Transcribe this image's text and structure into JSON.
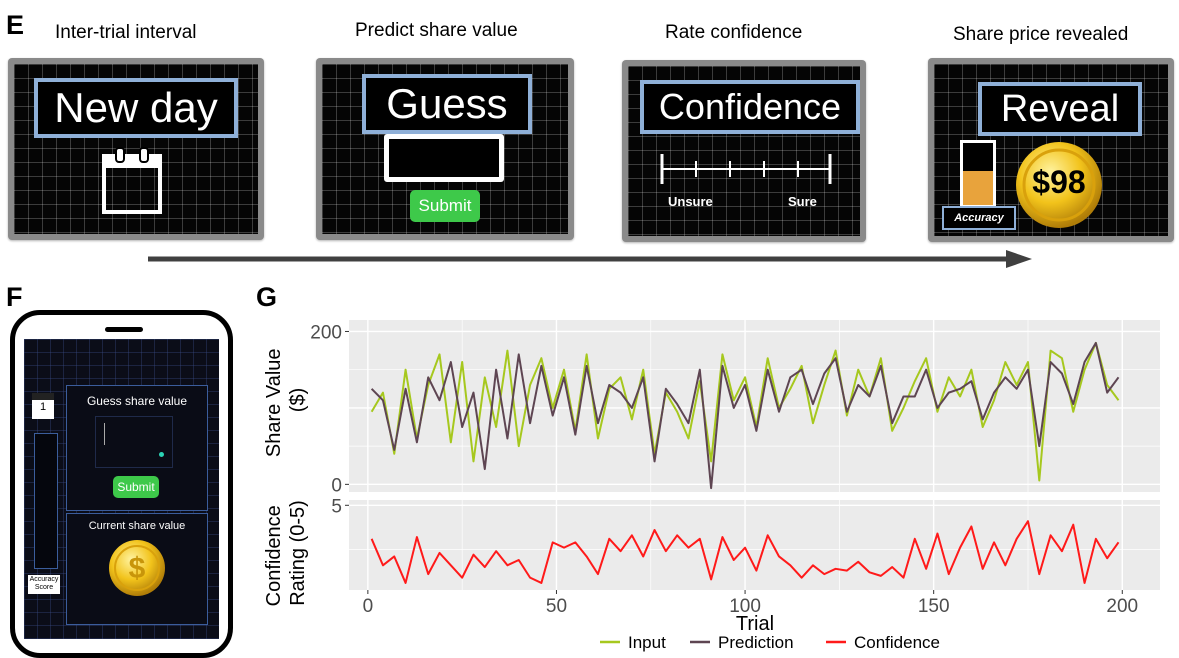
{
  "panel_e": {
    "letter": "E",
    "steps": [
      {
        "title": "Inter-trial interval",
        "label": "New day"
      },
      {
        "title": "Predict share value",
        "label": "Guess",
        "button": "Submit"
      },
      {
        "title": "Rate confidence",
        "label": "Confidence",
        "scale_left": "Unsure",
        "scale_right": "Sure"
      },
      {
        "title": "Share price revealed",
        "label": "Reveal",
        "price": "$98",
        "accuracy_label": "Accuracy",
        "accuracy_level": 0.55
      }
    ]
  },
  "panel_f": {
    "letter": "F",
    "day_number": "1",
    "accuracy_label_line1": "Accuracy",
    "accuracy_label_line2": "Score",
    "guess_title": "Guess share value",
    "submit_label": "Submit",
    "current_title": "Current share value"
  },
  "panel_g": {
    "letter": "G"
  },
  "colors": {
    "input": "#a6c81e",
    "prediction": "#5e4552",
    "confidence": "#ff1a1a",
    "plot_bg": "#ebebeb",
    "screen_border": "#8fb0d8",
    "submit_green": "#3ec94a",
    "accuracy_fill": "#e8a33c",
    "coin_gold": "#f2c31b"
  },
  "chart_data": [
    {
      "type": "line",
      "ylabel": "Share Value ($)",
      "ylim": [
        0,
        200
      ],
      "yticks": [
        0,
        200
      ],
      "xlim": [
        0,
        200
      ],
      "grid": true,
      "series": [
        {
          "name": "Input",
          "x": [
            1,
            4,
            7,
            10,
            13,
            16,
            19,
            22,
            25,
            28,
            31,
            34,
            37,
            40,
            43,
            46,
            49,
            52,
            55,
            58,
            61,
            64,
            67,
            70,
            73,
            76,
            79,
            82,
            85,
            88,
            91,
            94,
            97,
            100,
            103,
            106,
            109,
            112,
            115,
            118,
            121,
            124,
            127,
            130,
            133,
            136,
            139,
            142,
            145,
            148,
            151,
            154,
            157,
            160,
            163,
            166,
            169,
            172,
            175,
            178,
            181,
            184,
            187,
            190,
            193,
            196,
            199
          ],
          "y": [
            95,
            120,
            40,
            150,
            60,
            130,
            170,
            55,
            160,
            30,
            140,
            75,
            175,
            50,
            130,
            165,
            100,
            150,
            70,
            170,
            60,
            125,
            140,
            85,
            150,
            40,
            120,
            95,
            60,
            135,
            30,
            170,
            110,
            140,
            75,
            165,
            100,
            125,
            155,
            80,
            130,
            175,
            90,
            150,
            115,
            165,
            70,
            100,
            135,
            165,
            95,
            140,
            115,
            150,
            75,
            110,
            160,
            130,
            160,
            5,
            175,
            165,
            95,
            150,
            185,
            130,
            110
          ]
        },
        {
          "name": "Prediction",
          "x": [
            1,
            4,
            7,
            10,
            13,
            16,
            19,
            22,
            25,
            28,
            31,
            34,
            37,
            40,
            43,
            46,
            49,
            52,
            55,
            58,
            61,
            64,
            67,
            70,
            73,
            76,
            79,
            82,
            85,
            88,
            91,
            94,
            97,
            100,
            103,
            106,
            109,
            112,
            115,
            118,
            121,
            124,
            127,
            130,
            133,
            136,
            139,
            142,
            145,
            148,
            151,
            154,
            157,
            160,
            163,
            166,
            169,
            172,
            175,
            178,
            181,
            184,
            187,
            190,
            193,
            196,
            199
          ],
          "y": [
            125,
            110,
            45,
            125,
            55,
            140,
            110,
            160,
            75,
            120,
            20,
            150,
            60,
            170,
            80,
            155,
            90,
            140,
            65,
            155,
            80,
            130,
            120,
            100,
            140,
            30,
            125,
            105,
            80,
            150,
            -5,
            155,
            100,
            130,
            70,
            150,
            95,
            140,
            150,
            105,
            145,
            165,
            95,
            130,
            115,
            155,
            80,
            115,
            115,
            150,
            100,
            120,
            125,
            135,
            85,
            120,
            140,
            125,
            150,
            50,
            160,
            145,
            105,
            160,
            185,
            120,
            140
          ]
        },
        {
          "name": "Confidence",
          "x": [
            1,
            4,
            7,
            10,
            13,
            16,
            19,
            22,
            25,
            28,
            31,
            34,
            37,
            40,
            43,
            46,
            49,
            52,
            55,
            58,
            61,
            64,
            67,
            70,
            73,
            76,
            79,
            82,
            85,
            88,
            91,
            94,
            97,
            100,
            103,
            106,
            109,
            112,
            115,
            118,
            121,
            124,
            127,
            130,
            133,
            136,
            139,
            142,
            145,
            148,
            151,
            154,
            157,
            160,
            163,
            166,
            169,
            172,
            175,
            178,
            181,
            184,
            187,
            190,
            193,
            196,
            199
          ],
          "y": [
            3.1,
            1.6,
            2.1,
            0.6,
            3.2,
            1.1,
            2.3,
            1.6,
            0.9,
            2.2,
            1.5,
            2.4,
            1.6,
            1.9,
            0.9,
            0.6,
            2.9,
            2.6,
            2.9,
            2.1,
            1.1,
            3.1,
            2.4,
            3.3,
            2.1,
            3.6,
            2.4,
            3.3,
            2.6,
            3.1,
            0.8,
            3.2,
            1.9,
            2.6,
            1.3,
            3.3,
            2.1,
            1.6,
            0.9,
            1.6,
            1.1,
            1.4,
            1.3,
            1.8,
            1.2,
            1.0,
            1.5,
            0.9,
            3.1,
            1.4,
            3.4,
            1.1,
            2.6,
            3.8,
            1.4,
            2.9,
            1.6,
            3.1,
            4.1,
            1.1,
            3.3,
            2.4,
            3.9,
            0.6,
            3.1,
            2.0,
            2.9
          ]
        }
      ]
    },
    {
      "type": "line",
      "ylabel": "Confidence Rating (0-5)",
      "ylim": [
        0,
        5
      ],
      "yticks": [
        5
      ],
      "xlabel": "Trial",
      "xticks": [
        0,
        50,
        100,
        150,
        200
      ],
      "xlim": [
        -5,
        210
      ],
      "legend": [
        "Input",
        "Prediction",
        "Confidence"
      ],
      "legend_position": "bottom"
    }
  ]
}
